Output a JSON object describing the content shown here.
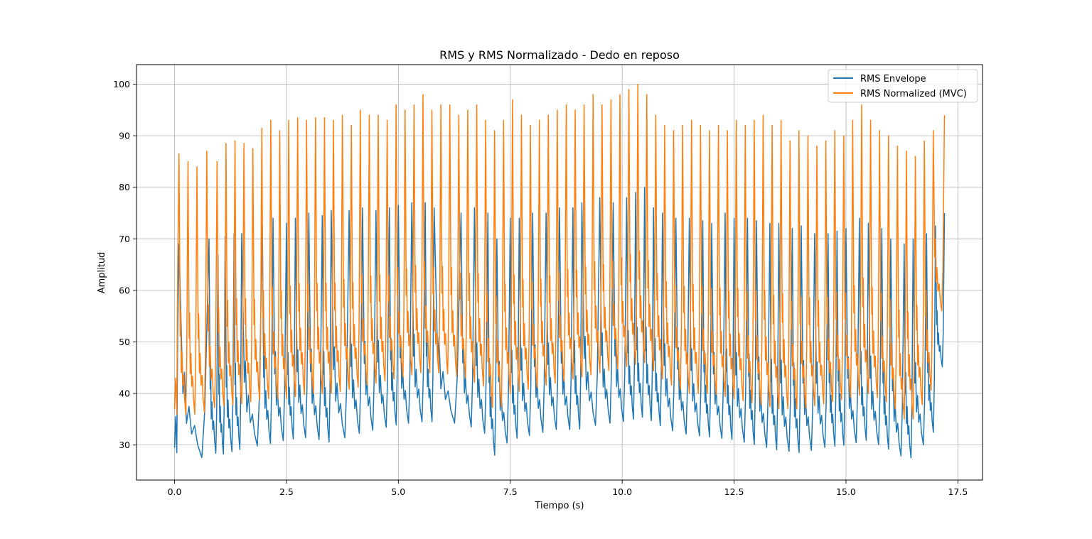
{
  "chart_data": {
    "type": "line",
    "title": "RMS y RMS Normalizado - Dedo en reposo",
    "xlabel": "Tiempo (s)",
    "ylabel": "Amplitud",
    "xlim": [
      -0.85,
      18.05
    ],
    "ylim": [
      23.2,
      103.8
    ],
    "x_ticks": [
      0.0,
      2.5,
      5.0,
      7.5,
      10.0,
      12.5,
      15.0,
      17.5
    ],
    "x_tick_labels": [
      "0.0",
      "2.5",
      "5.0",
      "7.5",
      "10.0",
      "12.5",
      "15.0",
      "17.5"
    ],
    "y_ticks": [
      30,
      40,
      50,
      60,
      70,
      80,
      90,
      100
    ],
    "y_tick_labels": [
      "30",
      "40",
      "50",
      "60",
      "70",
      "80",
      "90",
      "100"
    ],
    "grid": true,
    "legend_position": "top-right",
    "series": [
      {
        "name": "RMS Envelope",
        "color": "#1f77b4",
        "x_start": 0.0,
        "x_end": 17.2,
        "peaks": [
          [
            0.1,
            69
          ],
          [
            0.77,
            70
          ],
          [
            0.97,
            67
          ],
          [
            1.13,
            70.5
          ],
          [
            1.33,
            71
          ],
          [
            1.5,
            71
          ],
          [
            1.96,
            73
          ],
          [
            2.2,
            74
          ],
          [
            2.5,
            73
          ],
          [
            2.7,
            74
          ],
          [
            3.0,
            75
          ],
          [
            3.3,
            74.5
          ],
          [
            3.5,
            75.5
          ],
          [
            3.9,
            75.5
          ],
          [
            4.2,
            76
          ],
          [
            4.5,
            75.5
          ],
          [
            4.8,
            76
          ],
          [
            5.0,
            76.5
          ],
          [
            5.3,
            77
          ],
          [
            5.6,
            77
          ],
          [
            5.8,
            76
          ],
          [
            6.4,
            75
          ],
          [
            6.7,
            76
          ],
          [
            7.0,
            75
          ],
          [
            7.2,
            70
          ],
          [
            7.5,
            74
          ],
          [
            7.7,
            74
          ],
          [
            8.0,
            75
          ],
          [
            8.3,
            75
          ],
          [
            8.6,
            76
          ],
          [
            8.9,
            76
          ],
          [
            9.1,
            77
          ],
          [
            9.5,
            78
          ],
          [
            9.8,
            77
          ],
          [
            10.1,
            78
          ],
          [
            10.3,
            79
          ],
          [
            10.5,
            80
          ],
          [
            10.7,
            76
          ],
          [
            10.9,
            75
          ],
          [
            11.2,
            74
          ],
          [
            11.5,
            74
          ],
          [
            11.8,
            73.5
          ],
          [
            12.0,
            73
          ],
          [
            12.3,
            75
          ],
          [
            12.5,
            74
          ],
          [
            12.8,
            74
          ],
          [
            13.0,
            73.5
          ],
          [
            13.3,
            73
          ],
          [
            13.5,
            73
          ],
          [
            13.8,
            72
          ],
          [
            14.0,
            72.5
          ],
          [
            14.3,
            71
          ],
          [
            14.6,
            71
          ],
          [
            14.8,
            71.5
          ],
          [
            15.0,
            72
          ],
          [
            15.3,
            74
          ],
          [
            15.5,
            73
          ],
          [
            15.8,
            72
          ],
          [
            16.0,
            70
          ],
          [
            16.3,
            69
          ],
          [
            16.5,
            70
          ],
          [
            16.8,
            71
          ],
          [
            17.0,
            72.5
          ],
          [
            17.2,
            75
          ]
        ],
        "troughs": [
          [
            0.03,
            29.5
          ],
          [
            0.15,
            32
          ],
          [
            0.2,
            27
          ],
          [
            0.4,
            27.5
          ],
          [
            0.6,
            27.5
          ],
          [
            0.8,
            29
          ],
          [
            1.0,
            28
          ],
          [
            1.2,
            28.5
          ],
          [
            1.4,
            29
          ],
          [
            1.6,
            29.5
          ],
          [
            2.0,
            30
          ],
          [
            2.5,
            31
          ],
          [
            3.0,
            31.5
          ],
          [
            3.5,
            30.5
          ],
          [
            4.0,
            32
          ],
          [
            4.5,
            33
          ],
          [
            5.0,
            34
          ],
          [
            5.5,
            34.5
          ],
          [
            6.0,
            34.5
          ],
          [
            6.5,
            34
          ],
          [
            7.0,
            32
          ],
          [
            7.15,
            28
          ],
          [
            7.5,
            31
          ],
          [
            8.0,
            32
          ],
          [
            8.5,
            33
          ],
          [
            9.0,
            33
          ],
          [
            9.5,
            34
          ],
          [
            10.0,
            34.5
          ],
          [
            10.5,
            35.5
          ],
          [
            11.0,
            33
          ],
          [
            11.5,
            32
          ],
          [
            12.0,
            31.5
          ],
          [
            12.5,
            31
          ],
          [
            13.0,
            30
          ],
          [
            13.5,
            29
          ],
          [
            14.0,
            28.5
          ],
          [
            14.5,
            29.5
          ],
          [
            15.0,
            30
          ],
          [
            15.5,
            31
          ],
          [
            16.0,
            29
          ],
          [
            16.3,
            27.5
          ],
          [
            16.5,
            27.5
          ],
          [
            17.0,
            33
          ],
          [
            17.2,
            49
          ]
        ]
      },
      {
        "name": "RMS Normalized (MVC)",
        "color": "#ff7f0e",
        "x_start": 0.0,
        "x_end": 17.2,
        "peaks": [
          [
            0.1,
            86.5
          ],
          [
            0.3,
            85
          ],
          [
            0.5,
            84
          ],
          [
            0.72,
            87
          ],
          [
            0.95,
            85
          ],
          [
            1.15,
            88.5
          ],
          [
            1.35,
            89
          ],
          [
            1.55,
            88.5
          ],
          [
            1.75,
            87.5
          ],
          [
            1.95,
            91.5
          ],
          [
            2.15,
            93
          ],
          [
            2.35,
            91
          ],
          [
            2.55,
            93
          ],
          [
            2.75,
            93.5
          ],
          [
            2.95,
            93
          ],
          [
            3.15,
            93.5
          ],
          [
            3.35,
            93.5
          ],
          [
            3.55,
            93
          ],
          [
            3.75,
            94
          ],
          [
            3.95,
            92
          ],
          [
            4.15,
            95
          ],
          [
            4.35,
            94
          ],
          [
            4.55,
            94
          ],
          [
            4.75,
            93
          ],
          [
            4.95,
            96
          ],
          [
            5.15,
            95
          ],
          [
            5.35,
            96
          ],
          [
            5.55,
            98
          ],
          [
            5.75,
            95
          ],
          [
            5.95,
            96
          ],
          [
            6.15,
            96
          ],
          [
            6.35,
            94
          ],
          [
            6.55,
            95
          ],
          [
            6.75,
            96
          ],
          [
            6.95,
            93
          ],
          [
            7.15,
            91
          ],
          [
            7.35,
            93
          ],
          [
            7.55,
            97
          ],
          [
            7.75,
            94
          ],
          [
            7.95,
            92
          ],
          [
            8.15,
            93
          ],
          [
            8.35,
            94
          ],
          [
            8.55,
            95
          ],
          [
            8.75,
            96
          ],
          [
            8.95,
            95
          ],
          [
            9.15,
            96
          ],
          [
            9.35,
            98
          ],
          [
            9.55,
            96
          ],
          [
            9.75,
            97
          ],
          [
            9.95,
            98
          ],
          [
            10.15,
            99
          ],
          [
            10.35,
            100
          ],
          [
            10.55,
            98
          ],
          [
            10.75,
            94
          ],
          [
            10.95,
            92
          ],
          [
            11.15,
            91
          ],
          [
            11.35,
            92
          ],
          [
            11.55,
            93
          ],
          [
            11.75,
            92
          ],
          [
            11.95,
            91
          ],
          [
            12.15,
            92
          ],
          [
            12.35,
            91
          ],
          [
            12.55,
            93
          ],
          [
            12.75,
            92
          ],
          [
            12.95,
            93
          ],
          [
            13.15,
            94
          ],
          [
            13.35,
            92
          ],
          [
            13.55,
            93
          ],
          [
            13.75,
            89
          ],
          [
            13.95,
            91
          ],
          [
            14.15,
            90
          ],
          [
            14.35,
            88
          ],
          [
            14.55,
            89
          ],
          [
            14.75,
            91
          ],
          [
            14.95,
            90
          ],
          [
            15.15,
            93
          ],
          [
            15.35,
            96
          ],
          [
            15.55,
            93
          ],
          [
            15.75,
            91
          ],
          [
            15.95,
            90
          ],
          [
            16.15,
            88
          ],
          [
            16.35,
            87
          ],
          [
            16.55,
            86
          ],
          [
            16.75,
            89
          ],
          [
            16.95,
            91
          ],
          [
            17.2,
            94
          ]
        ],
        "troughs": [
          [
            0.03,
            37
          ],
          [
            0.2,
            36
          ],
          [
            0.4,
            36
          ],
          [
            0.6,
            36
          ],
          [
            0.8,
            37
          ],
          [
            1.0,
            37.5
          ],
          [
            1.5,
            38
          ],
          [
            2.0,
            39
          ],
          [
            2.5,
            39
          ],
          [
            3.0,
            40
          ],
          [
            3.5,
            40
          ],
          [
            4.0,
            41
          ],
          [
            4.5,
            42
          ],
          [
            5.0,
            43
          ],
          [
            5.5,
            44
          ],
          [
            6.0,
            44
          ],
          [
            6.5,
            43
          ],
          [
            7.0,
            41
          ],
          [
            7.15,
            35.5
          ],
          [
            7.5,
            40
          ],
          [
            8.0,
            41
          ],
          [
            8.5,
            42
          ],
          [
            9.0,
            43
          ],
          [
            9.5,
            44
          ],
          [
            10.0,
            45
          ],
          [
            10.5,
            46
          ],
          [
            11.0,
            42
          ],
          [
            11.5,
            40
          ],
          [
            12.0,
            40
          ],
          [
            12.5,
            39
          ],
          [
            13.0,
            38
          ],
          [
            13.5,
            37
          ],
          [
            14.0,
            37
          ],
          [
            14.5,
            38
          ],
          [
            15.0,
            39
          ],
          [
            15.5,
            40
          ],
          [
            16.0,
            38
          ],
          [
            16.3,
            35
          ],
          [
            16.5,
            35
          ],
          [
            17.0,
            42
          ],
          [
            17.2,
            62
          ]
        ]
      }
    ]
  }
}
